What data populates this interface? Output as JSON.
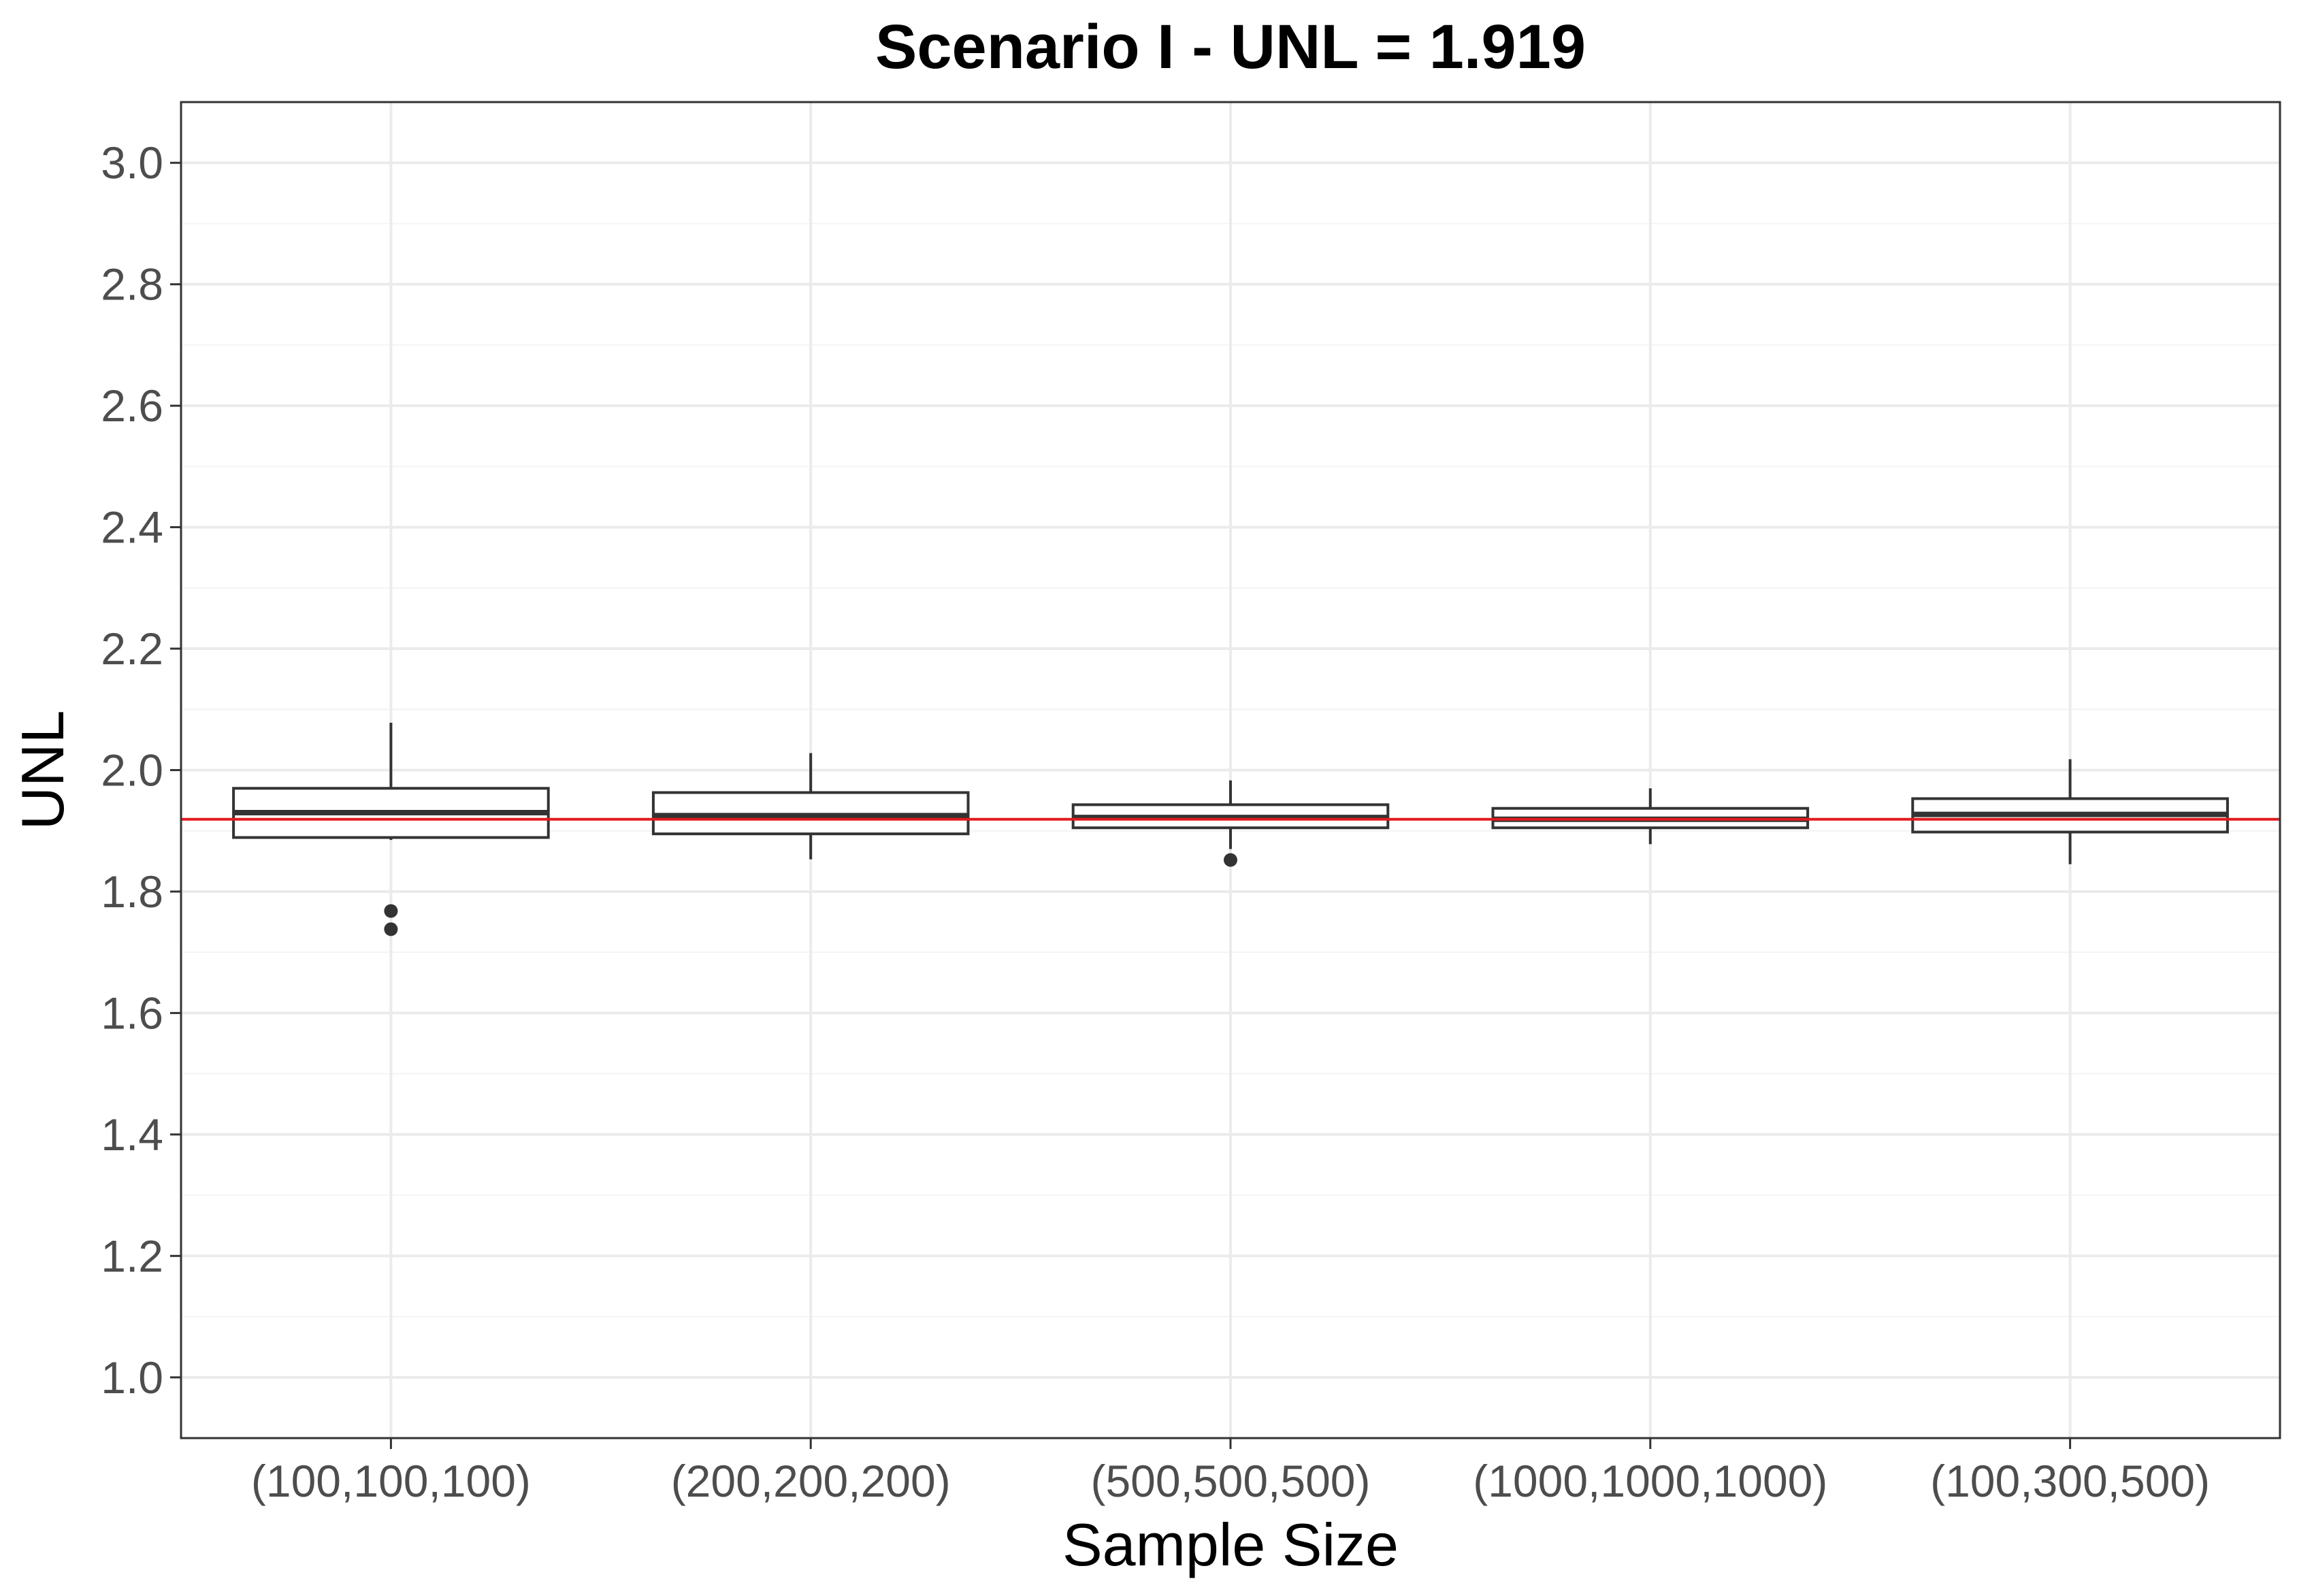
{
  "chart_data": {
    "type": "box",
    "title": "Scenario I - UNL = 1.919",
    "xlabel": "Sample Size",
    "ylabel": "UNL",
    "ylim": [
      0.9,
      3.1
    ],
    "yticks": [
      "1.0",
      "1.2",
      "1.4",
      "1.6",
      "1.8",
      "2.0",
      "2.2",
      "2.4",
      "2.6",
      "2.8",
      "3.0"
    ],
    "ytick_values": [
      1.0,
      1.2,
      1.4,
      1.6,
      1.8,
      2.0,
      2.2,
      2.4,
      2.6,
      2.8,
      3.0
    ],
    "categories": [
      "(100,100,100)",
      "(200,200,200)",
      "(500,500,500)",
      "(1000,1000,1000)",
      "(100,300,500)"
    ],
    "boxes": [
      {
        "category": "(100,100,100)",
        "whisker_low": 1.885,
        "q1": 1.889,
        "median": 1.93,
        "q3": 1.97,
        "whisker_high": 2.078,
        "outliers": [
          1.768,
          1.738
        ]
      },
      {
        "category": "(200,200,200)",
        "whisker_low": 1.853,
        "q1": 1.895,
        "median": 1.925,
        "q3": 1.963,
        "whisker_high": 2.028,
        "outliers": []
      },
      {
        "category": "(500,500,500)",
        "whisker_low": 1.87,
        "q1": 1.905,
        "median": 1.922,
        "q3": 1.943,
        "whisker_high": 1.983,
        "outliers": [
          1.852
        ]
      },
      {
        "category": "(1000,1000,1000)",
        "whisker_low": 1.878,
        "q1": 1.905,
        "median": 1.919,
        "q3": 1.937,
        "whisker_high": 1.97,
        "outliers": []
      },
      {
        "category": "(100,300,500)",
        "whisker_low": 1.845,
        "q1": 1.898,
        "median": 1.927,
        "q3": 1.953,
        "whisker_high": 2.018,
        "outliers": []
      }
    ],
    "reference_line": {
      "value": 1.919,
      "color": "#e31a1c"
    },
    "grid": true,
    "legend": "none",
    "colors": {
      "box_stroke": "#333333",
      "box_fill": "#ffffff",
      "grid_major": "#ebebeb",
      "grid_minor": "#f4f4f4",
      "panel_border": "#333333"
    }
  }
}
